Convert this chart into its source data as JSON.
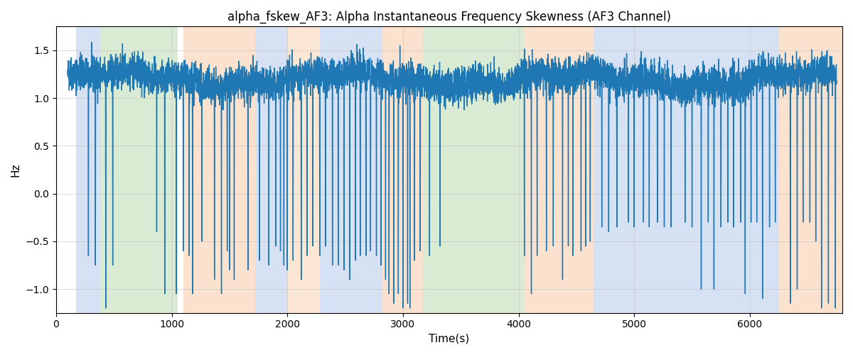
{
  "title": "alpha_fskew_AF3: Alpha Instantaneous Frequency Skewness (AF3 Channel)",
  "xlabel": "Time(s)",
  "ylabel": "Hz",
  "xlim_left": 0,
  "xlim_right": 6800,
  "ylim_bottom": -1.25,
  "ylim_top": 1.75,
  "line_color": "#1f77b4",
  "line_width": 1.0,
  "background_regions": [
    {
      "xstart": 170,
      "xend": 390,
      "color": "#aec7e8",
      "alpha": 0.5
    },
    {
      "xstart": 390,
      "xend": 1050,
      "color": "#b5d8a8",
      "alpha": 0.5
    },
    {
      "xstart": 1100,
      "xend": 1720,
      "color": "#f7c79e",
      "alpha": 0.5
    },
    {
      "xstart": 1720,
      "xend": 2000,
      "color": "#aec7e8",
      "alpha": 0.5
    },
    {
      "xstart": 2000,
      "xend": 2280,
      "color": "#f7c79e",
      "alpha": 0.45
    },
    {
      "xstart": 2280,
      "xend": 2820,
      "color": "#aec7e8",
      "alpha": 0.5
    },
    {
      "xstart": 2820,
      "xend": 3170,
      "color": "#f7c79e",
      "alpha": 0.5
    },
    {
      "xstart": 3170,
      "xend": 4050,
      "color": "#b5d8a8",
      "alpha": 0.5
    },
    {
      "xstart": 4050,
      "xend": 4650,
      "color": "#f7c79e",
      "alpha": 0.5
    },
    {
      "xstart": 4650,
      "xend": 6250,
      "color": "#aec7e8",
      "alpha": 0.5
    },
    {
      "xstart": 6250,
      "xend": 6800,
      "color": "#f7c79e",
      "alpha": 0.5
    }
  ],
  "yticks": [
    -1.0,
    -0.5,
    0.0,
    0.5,
    1.0,
    1.5
  ],
  "xticks": [
    0,
    1000,
    2000,
    3000,
    4000,
    5000,
    6000
  ],
  "title_fontsize": 12,
  "label_fontsize": 11,
  "seed": 42
}
